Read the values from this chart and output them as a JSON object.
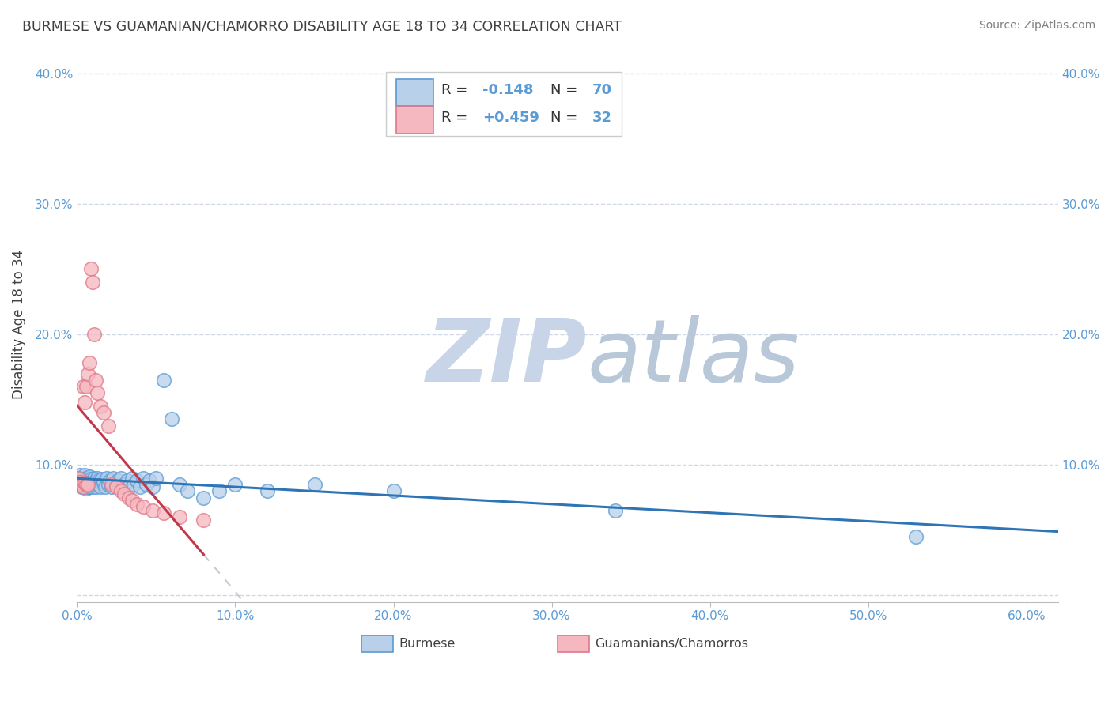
{
  "title": "BURMESE VS GUAMANIAN/CHAMORRO DISABILITY AGE 18 TO 34 CORRELATION CHART",
  "source": "Source: ZipAtlas.com",
  "ylabel": "Disability Age 18 to 34",
  "legend_label1": "Burmese",
  "legend_label2": "Guamanians/Chamorros",
  "R1": -0.148,
  "N1": 70,
  "R2": 0.459,
  "N2": 32,
  "burmese_x": [
    0.001,
    0.002,
    0.002,
    0.003,
    0.003,
    0.003,
    0.004,
    0.004,
    0.004,
    0.005,
    0.005,
    0.005,
    0.006,
    0.006,
    0.006,
    0.007,
    0.007,
    0.007,
    0.008,
    0.008,
    0.008,
    0.009,
    0.009,
    0.01,
    0.01,
    0.011,
    0.011,
    0.012,
    0.012,
    0.013,
    0.013,
    0.014,
    0.015,
    0.015,
    0.016,
    0.017,
    0.018,
    0.019,
    0.02,
    0.021,
    0.022,
    0.023,
    0.025,
    0.026,
    0.027,
    0.028,
    0.03,
    0.032,
    0.033,
    0.035,
    0.036,
    0.038,
    0.04,
    0.042,
    0.044,
    0.046,
    0.048,
    0.05,
    0.055,
    0.06,
    0.065,
    0.07,
    0.08,
    0.09,
    0.1,
    0.12,
    0.15,
    0.2,
    0.34,
    0.53
  ],
  "burmese_y": [
    0.09,
    0.085,
    0.092,
    0.088,
    0.086,
    0.083,
    0.09,
    0.087,
    0.084,
    0.092,
    0.088,
    0.085,
    0.09,
    0.087,
    0.082,
    0.089,
    0.086,
    0.083,
    0.091,
    0.087,
    0.083,
    0.089,
    0.085,
    0.088,
    0.083,
    0.09,
    0.085,
    0.088,
    0.083,
    0.09,
    0.085,
    0.088,
    0.087,
    0.083,
    0.089,
    0.086,
    0.083,
    0.09,
    0.085,
    0.088,
    0.083,
    0.09,
    0.085,
    0.088,
    0.083,
    0.09,
    0.085,
    0.088,
    0.083,
    0.09,
    0.085,
    0.088,
    0.083,
    0.09,
    0.085,
    0.088,
    0.083,
    0.09,
    0.165,
    0.135,
    0.085,
    0.08,
    0.075,
    0.08,
    0.085,
    0.08,
    0.085,
    0.08,
    0.065,
    0.045
  ],
  "chamorro_x": [
    0.001,
    0.002,
    0.003,
    0.004,
    0.004,
    0.005,
    0.005,
    0.006,
    0.006,
    0.007,
    0.007,
    0.008,
    0.009,
    0.01,
    0.011,
    0.012,
    0.013,
    0.015,
    0.017,
    0.02,
    0.022,
    0.025,
    0.028,
    0.03,
    0.033,
    0.035,
    0.038,
    0.042,
    0.048,
    0.055,
    0.065,
    0.08
  ],
  "chamorro_y": [
    0.09,
    0.087,
    0.085,
    0.16,
    0.083,
    0.148,
    0.086,
    0.16,
    0.085,
    0.17,
    0.085,
    0.178,
    0.25,
    0.24,
    0.2,
    0.165,
    0.155,
    0.145,
    0.14,
    0.13,
    0.085,
    0.083,
    0.08,
    0.078,
    0.075,
    0.073,
    0.07,
    0.068,
    0.065,
    0.063,
    0.06,
    0.058
  ],
  "xlim": [
    0.0,
    0.62
  ],
  "ylim": [
    -0.005,
    0.42
  ],
  "xticks": [
    0.0,
    0.1,
    0.2,
    0.3,
    0.4,
    0.5,
    0.6
  ],
  "xticklabels": [
    "0.0%",
    "10.0%",
    "20.0%",
    "30.0%",
    "40.0%",
    "50.0%",
    "60.0%"
  ],
  "yticks": [
    0.0,
    0.1,
    0.2,
    0.3,
    0.4
  ],
  "yticklabels": [
    "",
    "10.0%",
    "20.0%",
    "30.0%",
    "40.0%"
  ],
  "right_yticks": [
    0.1,
    0.2,
    0.3,
    0.4
  ],
  "right_yticklabels": [
    "10.0%",
    "20.0%",
    "30.0%",
    "40.0%"
  ],
  "color_burmese_face": "#b8d0ea",
  "color_burmese_edge": "#5b9bd5",
  "color_chamorro_face": "#f5b8c0",
  "color_chamorro_edge": "#e07888",
  "color_line_burmese": "#2e75b6",
  "color_line_chamorro": "#c0384a",
  "color_line_dashed": "#c8c8d0",
  "color_title": "#404040",
  "color_source": "#808080",
  "color_axis_tick": "#5b9bd5",
  "color_grid": "#d0d8e8",
  "background_color": "#ffffff",
  "watermark_zip": "ZIP",
  "watermark_atlas": "atlas",
  "watermark_color_zip": "#c8d4e8",
  "watermark_color_atlas": "#b8c8d8"
}
